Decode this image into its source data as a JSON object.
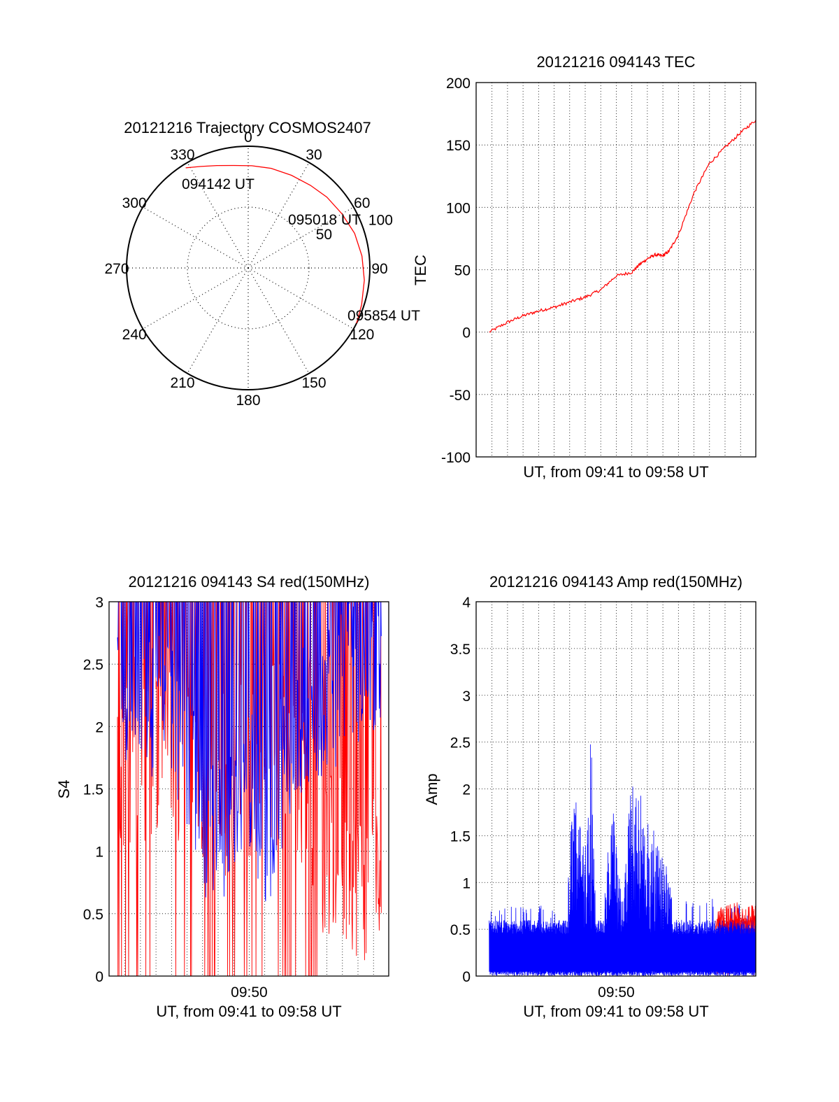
{
  "chart_data": [
    {
      "type": "polar",
      "title": "20121216 Trajectory COSMOS2407",
      "angle_labels": [
        "0",
        "30",
        "60",
        "90",
        "120",
        "150",
        "180",
        "210",
        "240",
        "270",
        "300",
        "330"
      ],
      "radius_labels": [
        "50",
        "100"
      ],
      "rmax": 100,
      "track": {
        "color": "#ff0000",
        "points": [
          {
            "az": 328,
            "el_r": 97
          },
          {
            "az": 335,
            "el_r": 92
          },
          {
            "az": 343,
            "el_r": 88
          },
          {
            "az": 352,
            "el_r": 85
          },
          {
            "az": 2,
            "el_r": 84
          },
          {
            "az": 13,
            "el_r": 84
          },
          {
            "az": 25,
            "el_r": 84
          },
          {
            "az": 37,
            "el_r": 85
          },
          {
            "az": 48,
            "el_r": 87
          },
          {
            "az": 60,
            "el_r": 89
          },
          {
            "az": 72,
            "el_r": 92
          },
          {
            "az": 84,
            "el_r": 94
          },
          {
            "az": 96,
            "el_r": 96
          },
          {
            "az": 108,
            "el_r": 98
          },
          {
            "az": 117,
            "el_r": 100
          }
        ]
      },
      "annotations": [
        {
          "label": "094142 UT",
          "az": 330,
          "r": 97
        },
        {
          "label": "095018 UT",
          "az": 48,
          "r": 86
        },
        {
          "label": "095854 UT",
          "az": 117,
          "r": 100
        }
      ]
    },
    {
      "type": "line",
      "title": "20121216 094143 TEC",
      "xlabel": "UT, from 09:41 to 09:58 UT",
      "ylabel": "TEC",
      "xlim": [
        9.683,
        9.983
      ],
      "ylim": [
        -100,
        200
      ],
      "yticks": [
        -100,
        -50,
        0,
        50,
        100,
        150,
        200
      ],
      "grid": true,
      "series": [
        {
          "color": "#ff0000",
          "x": [
            9.697,
            9.717,
            9.733,
            9.75,
            9.767,
            9.783,
            9.8,
            9.817,
            9.833,
            9.85,
            9.858,
            9.867,
            9.875,
            9.883,
            9.89,
            9.9,
            9.917,
            9.933,
            9.95,
            9.967,
            9.983
          ],
          "y": [
            0,
            8,
            13,
            17,
            20,
            24,
            28,
            34,
            45,
            48,
            54,
            59,
            62,
            61,
            65,
            78,
            112,
            135,
            148,
            160,
            170
          ]
        }
      ]
    },
    {
      "type": "line",
      "title": "20121216 094143 S4 red(150MHz)",
      "xlabel": "UT, from 09:41 to 09:58 UT",
      "ylabel": "S4",
      "xlim": [
        9.683,
        9.983
      ],
      "ylim": [
        0,
        3
      ],
      "xtick_labels": [
        "09:50"
      ],
      "yticks": [
        0,
        0.5,
        1,
        1.5,
        2,
        2.5,
        3
      ],
      "grid": true,
      "series": [
        {
          "color": "#0000ff",
          "x": [
            9.692,
            9.717,
            9.733,
            9.75,
            9.77,
            9.783,
            9.8,
            9.817,
            9.833,
            9.85,
            9.875,
            9.9,
            9.925,
            9.95,
            9.975
          ],
          "y": [
            2.0,
            1.9,
            1.8,
            1.7,
            1.4,
            0.8,
            0.9,
            0.8,
            1.3,
            0.6,
            1.5,
            1.8,
            1.9,
            2.1,
            2.2
          ]
        },
        {
          "color": "#ff0000",
          "x": [
            9.692,
            9.717,
            9.75,
            9.783,
            9.817,
            9.85,
            9.875,
            9.9,
            9.915,
            9.925,
            9.94,
            9.95,
            9.96,
            9.975
          ],
          "y": [
            1.5,
            1.5,
            1.5,
            1.4,
            1.2,
            1.5,
            1.4,
            1.2,
            0.6,
            0.7,
            0.6,
            0.55,
            0.5,
            0.4
          ]
        }
      ]
    },
    {
      "type": "line",
      "title": "20121216 094143 Amp red(150MHz)",
      "xlabel": "UT, from 09:41 to 09:58 UT",
      "ylabel": "Amp",
      "xlim": [
        9.683,
        9.983
      ],
      "ylim": [
        0,
        4
      ],
      "xtick_labels": [
        "09:50"
      ],
      "yticks": [
        0,
        0.5,
        1,
        1.5,
        2,
        2.5,
        3,
        3.5,
        4
      ],
      "grid": true,
      "series": [
        {
          "color": "#ff0000",
          "x": [
            9.94,
            9.95,
            9.96,
            9.97,
            9.983
          ],
          "y": [
            0.72,
            0.75,
            0.8,
            0.78,
            0.75
          ]
        },
        {
          "color": "#0000ff",
          "x": [
            9.697,
            9.75,
            9.78,
            9.785,
            9.79,
            9.8,
            9.807,
            9.81,
            9.82,
            9.83,
            9.84,
            9.85,
            9.9,
            9.95,
            9.983
          ],
          "y": [
            0.7,
            0.8,
            0.6,
            1.8,
            2.05,
            1.5,
            2.9,
            1.0,
            0.9,
            1.85,
            0.8,
            2.25,
            0.8,
            0.85,
            0.7
          ]
        }
      ]
    }
  ]
}
